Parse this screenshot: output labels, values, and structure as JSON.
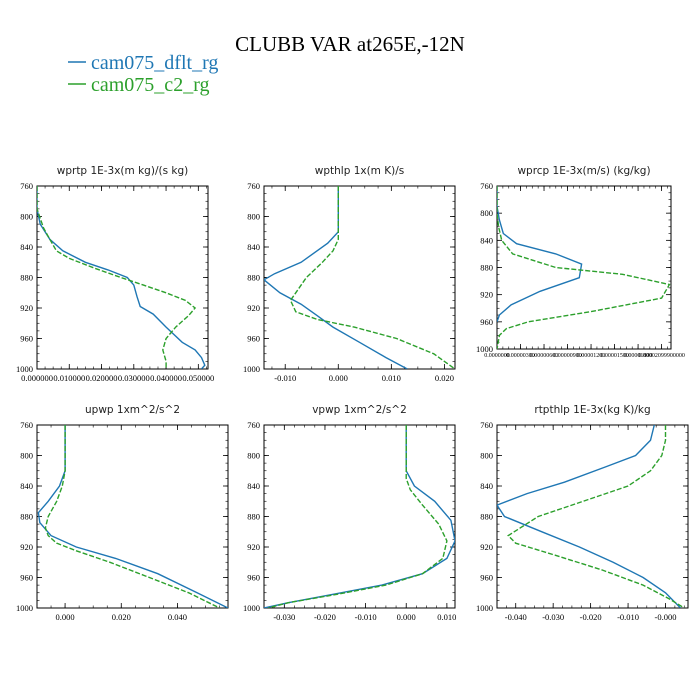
{
  "figure": {
    "title": "CLUBB VAR at265E,-12N",
    "legend": [
      {
        "label": "cam075_dflt_rg",
        "color": "#1f77b4",
        "dash": "solid"
      },
      {
        "label": "cam075_c2_rg",
        "color": "#2ca02c",
        "dash": "dashed"
      }
    ]
  },
  "chart_data": [
    {
      "type": "line",
      "title": "wprtp  1E-3x(m kg)/(s kg)",
      "ylim": [
        760,
        1000
      ],
      "yticks": [
        760,
        800,
        840,
        880,
        920,
        960,
        1000
      ],
      "xlim": [
        0,
        0.053
      ],
      "xticks": [
        0,
        0.01,
        0.02,
        0.03,
        0.04,
        0.05
      ],
      "xtick_labels": [
        "0.000000",
        "0.010000",
        "0.020000",
        "0.030000",
        "0.040000",
        "0.050000"
      ],
      "series": [
        {
          "name": "cam075_dflt_rg",
          "x": [
            0,
            0,
            0.001,
            0.004,
            0.008,
            0.015,
            0.022,
            0.028,
            0.03,
            0.031,
            0.032,
            0.036,
            0.04,
            0.045,
            0.049,
            0.051,
            0.052,
            0.051
          ],
          "y": [
            760,
            790,
            810,
            830,
            845,
            860,
            870,
            880,
            890,
            905,
            918,
            928,
            945,
            965,
            975,
            985,
            995,
            1000
          ]
        },
        {
          "name": "cam075_c2_rg",
          "x": [
            0,
            0,
            0.002,
            0.004,
            0.006,
            0.01,
            0.018,
            0.026,
            0.033,
            0.04,
            0.046,
            0.049,
            0.047,
            0.043,
            0.04,
            0.039,
            0.04,
            0.04
          ],
          "y": [
            760,
            790,
            815,
            830,
            845,
            855,
            868,
            880,
            890,
            900,
            910,
            920,
            930,
            945,
            960,
            975,
            990,
            1000
          ]
        }
      ]
    },
    {
      "type": "line",
      "title": "wpthlp  1x(m K)/s",
      "ylim": [
        760,
        1000
      ],
      "yticks": [
        760,
        800,
        840,
        880,
        920,
        960,
        1000
      ],
      "xlim": [
        -0.014,
        0.022
      ],
      "xticks": [
        -0.01,
        0,
        0.01,
        0.02
      ],
      "xtick_labels": [
        "-0.010",
        "0.000",
        "0.010",
        "0.020"
      ],
      "series": [
        {
          "name": "cam075_dflt_rg",
          "x": [
            0,
            0,
            -0.002,
            -0.007,
            -0.012,
            -0.014,
            -0.011,
            -0.007,
            -0.004,
            -0.001,
            0.004,
            0.009,
            0.013
          ],
          "y": [
            760,
            820,
            835,
            860,
            875,
            883,
            900,
            915,
            930,
            945,
            965,
            985,
            1000
          ]
        },
        {
          "name": "cam075_c2_rg",
          "x": [
            0,
            0,
            -0.001,
            -0.003,
            -0.006,
            -0.009,
            -0.008,
            -0.004,
            0.003,
            0.011,
            0.018,
            0.021,
            0.022
          ],
          "y": [
            760,
            830,
            845,
            860,
            880,
            910,
            925,
            935,
            945,
            960,
            980,
            995,
            1000
          ]
        }
      ]
    },
    {
      "type": "line",
      "title": "wprcp  1E-3x(m/s) (kg/kg)",
      "ylim": [
        760,
        1000
      ],
      "yticks": [
        760,
        800,
        840,
        880,
        920,
        960,
        1000
      ],
      "xlim": [
        0,
        2.22e-05
      ],
      "xticks": [
        0,
        3e-06,
        6e-06,
        9e-06,
        1.2e-05,
        1.5e-05,
        1.8e-05,
        2.1e-05
      ],
      "xtick_labels": [
        "0.0000000",
        "0.00000300",
        "0.00000600",
        "0.00000900",
        "0.00001200",
        "0.00001500",
        "0.00001800",
        "0.00002099900000"
      ],
      "series": [
        {
          "name": "cam075_dflt_rg",
          "x": [
            0,
            0,
            3e-07,
            8e-07,
            2.5e-06,
            7.5e-06,
            1.08e-05,
            1.05e-05,
            5.5e-06,
            1.8e-06,
            3e-07,
            0
          ],
          "y": [
            760,
            790,
            810,
            830,
            845,
            860,
            875,
            895,
            915,
            935,
            950,
            960
          ]
        },
        {
          "name": "cam075_c2_rg",
          "x": [
            0,
            0,
            2e-07,
            6e-07,
            2e-06,
            7.5e-06,
            1.6e-05,
            2.2e-05,
            2.1e-05,
            1.2e-05,
            4e-06,
            1.2e-06,
            3e-07,
            0
          ],
          "y": [
            760,
            800,
            820,
            840,
            860,
            880,
            890,
            905,
            925,
            945,
            960,
            970,
            980,
            1000
          ]
        }
      ]
    },
    {
      "type": "line",
      "title": "upwp  1xm^2/s^2",
      "ylim": [
        760,
        1000
      ],
      "yticks": [
        760,
        800,
        840,
        880,
        920,
        960,
        1000
      ],
      "xlim": [
        -0.01,
        0.058
      ],
      "xticks": [
        0,
        0.02,
        0.04
      ],
      "xtick_labels": [
        "0.000",
        "0.020",
        "0.040"
      ],
      "series": [
        {
          "name": "cam075_dflt_rg",
          "x": [
            0,
            0,
            -0.002,
            -0.006,
            -0.0095,
            -0.009,
            -0.005,
            0.004,
            0.018,
            0.033,
            0.047,
            0.058
          ],
          "y": [
            760,
            820,
            840,
            860,
            875,
            888,
            905,
            920,
            935,
            955,
            980,
            1000
          ]
        },
        {
          "name": "cam075_c2_rg",
          "x": [
            0,
            0,
            -0.001,
            -0.003,
            -0.006,
            -0.007,
            -0.006,
            -0.003,
            0.004,
            0.016,
            0.03,
            0.044,
            0.055
          ],
          "y": [
            760,
            820,
            840,
            860,
            880,
            895,
            905,
            915,
            925,
            940,
            960,
            980,
            1000
          ]
        }
      ]
    },
    {
      "type": "line",
      "title": "vpwp  1xm^2/s^2",
      "ylim": [
        760,
        1000
      ],
      "yticks": [
        760,
        800,
        840,
        880,
        920,
        960,
        1000
      ],
      "xlim": [
        -0.035,
        0.012
      ],
      "xticks": [
        -0.03,
        -0.02,
        -0.01,
        0,
        0.01
      ],
      "xtick_labels": [
        "-0.030",
        "-0.020",
        "-0.010",
        "0.000",
        "0.010"
      ],
      "series": [
        {
          "name": "cam075_dflt_rg",
          "x": [
            0,
            0,
            0.002,
            0.007,
            0.011,
            0.012,
            0.01,
            0.004,
            -0.006,
            -0.018,
            -0.029,
            -0.035
          ],
          "y": [
            760,
            820,
            840,
            860,
            885,
            912,
            935,
            955,
            970,
            982,
            993,
            1000
          ]
        },
        {
          "name": "cam075_c2_rg",
          "x": [
            0,
            0,
            0.001,
            0.004,
            0.008,
            0.01,
            0.009,
            0.004,
            -0.005,
            -0.017,
            -0.029,
            -0.034
          ],
          "y": [
            760,
            830,
            845,
            865,
            890,
            912,
            935,
            955,
            970,
            982,
            993,
            1000
          ]
        }
      ]
    },
    {
      "type": "line",
      "title": "rtpthlp  1E-3x(kg K)/kg",
      "ylim": [
        760,
        1000
      ],
      "yticks": [
        760,
        800,
        840,
        880,
        920,
        960,
        1000
      ],
      "xlim": [
        -0.045,
        0.006
      ],
      "xticks": [
        -0.04,
        -0.03,
        -0.02,
        -0.01,
        0
      ],
      "xtick_labels": [
        "-0.040",
        "-0.030",
        "-0.020",
        "-0.010",
        "-0.000"
      ],
      "series": [
        {
          "name": "cam075_dflt_rg",
          "x": [
            -0.003,
            -0.004,
            -0.008,
            -0.016,
            -0.027,
            -0.037,
            -0.045,
            -0.043,
            -0.033,
            -0.023,
            -0.014,
            -0.006,
            0,
            0.004
          ],
          "y": [
            760,
            780,
            800,
            815,
            835,
            850,
            865,
            880,
            900,
            920,
            940,
            960,
            980,
            1000
          ]
        },
        {
          "name": "cam075_c2_rg",
          "x": [
            0,
            0,
            -0.001,
            -0.004,
            -0.01,
            -0.022,
            -0.034,
            -0.042,
            -0.04,
            -0.03,
            -0.017,
            -0.006,
            0.001,
            0.005
          ],
          "y": [
            760,
            780,
            800,
            820,
            840,
            860,
            880,
            905,
            915,
            930,
            950,
            970,
            988,
            1000
          ]
        }
      ]
    }
  ]
}
